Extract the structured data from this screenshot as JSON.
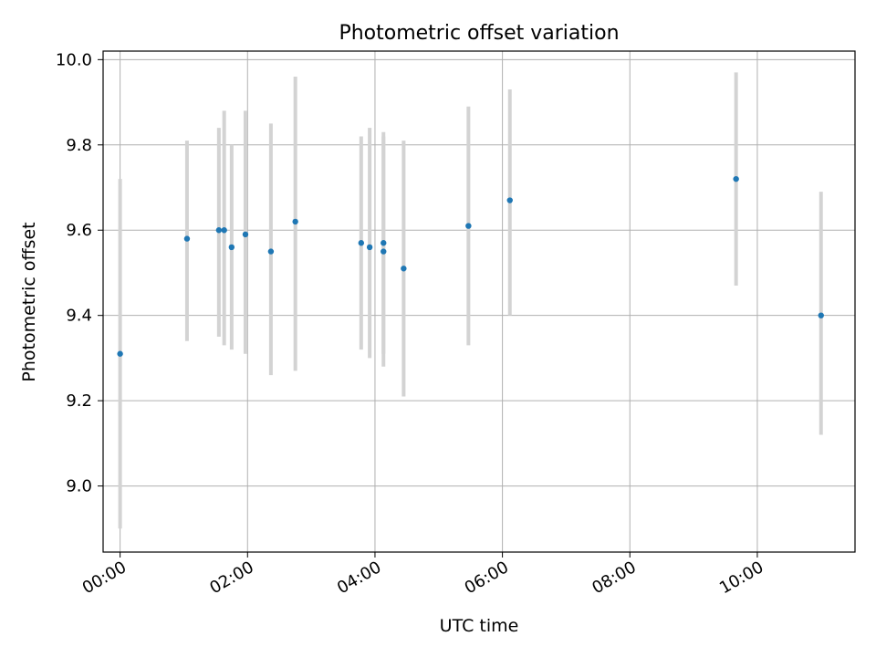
{
  "chart_data": {
    "type": "scatter",
    "title": "Photometric offset variation",
    "xlabel": "UTC time",
    "ylabel": "Photometric offset",
    "x_unit": "HH:MM UTC",
    "xlim": [
      "-00:16",
      "11:32"
    ],
    "ylim": [
      8.845,
      10.02
    ],
    "x_ticks": [
      "00:00",
      "02:00",
      "04:00",
      "06:00",
      "08:00",
      "10:00"
    ],
    "y_ticks": [
      "9.0",
      "9.2",
      "9.4",
      "9.6",
      "9.8",
      "10.0"
    ],
    "grid": true,
    "legend": "none",
    "points": [
      {
        "x": "00:00",
        "y": 9.31,
        "err_low": 8.9,
        "err_high": 9.72
      },
      {
        "x": "01:03",
        "y": 9.58,
        "err_low": 9.34,
        "err_high": 9.81
      },
      {
        "x": "01:33",
        "y": 9.6,
        "err_low": 9.35,
        "err_high": 9.84
      },
      {
        "x": "01:38",
        "y": 9.6,
        "err_low": 9.33,
        "err_high": 9.88
      },
      {
        "x": "01:45",
        "y": 9.56,
        "err_low": 9.32,
        "err_high": 9.8
      },
      {
        "x": "01:58",
        "y": 9.59,
        "err_low": 9.31,
        "err_high": 9.88
      },
      {
        "x": "02:22",
        "y": 9.55,
        "err_low": 9.26,
        "err_high": 9.85
      },
      {
        "x": "02:45",
        "y": 9.62,
        "err_low": 9.27,
        "err_high": 9.96
      },
      {
        "x": "03:47",
        "y": 9.57,
        "err_low": 9.32,
        "err_high": 9.82
      },
      {
        "x": "03:55",
        "y": 9.56,
        "err_low": 9.3,
        "err_high": 9.84
      },
      {
        "x": "04:08",
        "y": 9.57,
        "err_low": 9.31,
        "err_high": 9.83
      },
      {
        "x": "04:08",
        "y": 9.55,
        "err_low": 9.28,
        "err_high": 9.82
      },
      {
        "x": "04:27",
        "y": 9.51,
        "err_low": 9.21,
        "err_high": 9.81
      },
      {
        "x": "05:28",
        "y": 9.61,
        "err_low": 9.33,
        "err_high": 9.89
      },
      {
        "x": "06:07",
        "y": 9.67,
        "err_low": 9.4,
        "err_high": 9.93
      },
      {
        "x": "09:40",
        "y": 9.72,
        "err_low": 9.47,
        "err_high": 9.97
      },
      {
        "x": "11:00",
        "y": 9.4,
        "err_low": 9.12,
        "err_high": 9.69
      }
    ],
    "colors": {
      "point": "#1f77b4",
      "errorbar": "#d3d3d3",
      "grid": "#b0b0b0",
      "axes": "#000000"
    }
  }
}
